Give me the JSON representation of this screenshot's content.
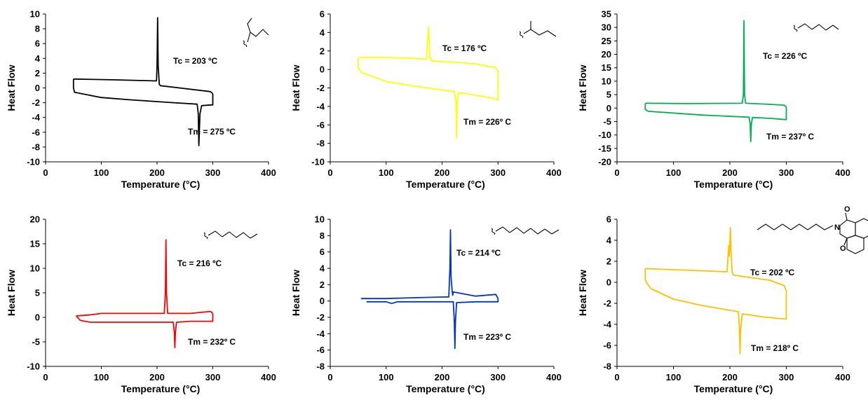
{
  "chart_data": [
    {
      "type": "line",
      "xlabel": "Temperature (°C)",
      "ylabel": "Heat Flow",
      "xlim": [
        0,
        400
      ],
      "ylim": [
        -10,
        10
      ],
      "xticks": [
        0,
        100,
        200,
        300,
        400
      ],
      "yticks": [
        10,
        8,
        6,
        4,
        2,
        0,
        -2,
        -4,
        -6,
        -8,
        -10
      ],
      "color": "#000000",
      "structure": "2-ethylbutyl",
      "series": [
        {
          "x": [
            50,
            120,
            199,
            200,
            201,
            202,
            204,
            206,
            240,
            296,
            300
          ],
          "y": [
            1.2,
            1.1,
            0.95,
            3,
            9.5,
            3,
            0.5,
            0.3,
            0.0,
            -0.5,
            -0.8
          ]
        },
        {
          "x": [
            300,
            300,
            296,
            280,
            277,
            275,
            274,
            272,
            230,
            150,
            100,
            52,
            50,
            50
          ],
          "y": [
            -0.8,
            -2.3,
            -2.3,
            -2.4,
            -3.5,
            -7.8,
            -3.5,
            -2.2,
            -2.0,
            -1.6,
            -1.3,
            -0.6,
            0.0,
            1.2
          ]
        }
      ],
      "annotations": [
        "Tc =  203 ºC",
        "Tm =  275 ºC"
      ]
    },
    {
      "type": "line",
      "xlabel": "Temperature (°C)",
      "ylabel": "Heat Flow",
      "xlim": [
        0,
        400
      ],
      "ylim": [
        -10,
        6
      ],
      "xticks": [
        0,
        100,
        200,
        300,
        400
      ],
      "yticks": [
        6,
        4,
        2,
        0,
        -2,
        -4,
        -6,
        -8,
        -10
      ],
      "color": "#ffff00",
      "structure": "2-methylpentyl",
      "series": [
        {
          "x": [
            52,
            100,
            150,
            172,
            176,
            178,
            182,
            220,
            260,
            296,
            300
          ],
          "y": [
            1.3,
            1.3,
            1.2,
            1.1,
            4.6,
            1.3,
            0.9,
            0.8,
            0.6,
            0.2,
            -0.2
          ]
        },
        {
          "x": [
            300,
            300,
            290,
            240,
            230,
            227,
            226,
            225,
            222,
            150,
            100,
            55,
            50,
            50
          ],
          "y": [
            -0.2,
            -3.3,
            -3.1,
            -2.6,
            -2.5,
            -3.5,
            -7.4,
            -3.5,
            -2.4,
            -1.8,
            -1.3,
            -0.3,
            0.2,
            1.3
          ]
        }
      ],
      "annotations": [
        "Tc =  176 ºC",
        "Tm =  226º C"
      ]
    },
    {
      "type": "line",
      "xlabel": "Temperature (°C)",
      "ylabel": "Heat Flow",
      "xlim": [
        0,
        400
      ],
      "ylim": [
        -20,
        35
      ],
      "xticks": [
        0,
        100,
        200,
        300,
        400
      ],
      "yticks": [
        35,
        30,
        25,
        20,
        15,
        10,
        5,
        0,
        -5,
        -10,
        -15,
        -20
      ],
      "color": "#00b050",
      "structure": "n-hexyl",
      "series": [
        {
          "x": [
            50,
            120,
            222,
            224,
            225,
            226,
            228,
            260,
            296,
            300
          ],
          "y": [
            1.8,
            1.7,
            1.8,
            5,
            32.5,
            5,
            1.8,
            1.5,
            1.1,
            0.5
          ]
        },
        {
          "x": [
            300,
            300,
            270,
            240,
            238,
            237,
            236,
            234,
            150,
            55,
            50,
            50
          ],
          "y": [
            0.5,
            -4.3,
            -3.8,
            -3.5,
            -6,
            -12.5,
            -6,
            -3.4,
            -2.6,
            -1.2,
            -0.5,
            1.8
          ]
        }
      ],
      "annotations": [
        "Tc =  226 ºC",
        "Tm =  237º C"
      ]
    },
    {
      "type": "line",
      "xlabel": "Temperature (°C)",
      "ylabel": "Heat Flow",
      "xlim": [
        0,
        400
      ],
      "ylim": [
        -10,
        20
      ],
      "xticks": [
        0,
        100,
        200,
        300,
        400
      ],
      "yticks": [
        20,
        15,
        10,
        5,
        0,
        -5,
        -10
      ],
      "color": "#ff0000",
      "structure": "n-heptyl",
      "series": [
        {
          "x": [
            55,
            80,
            100,
            150,
            213,
            215,
            216,
            217,
            219,
            260,
            296,
            300
          ],
          "y": [
            0.3,
            0.5,
            0.8,
            0.8,
            0.8,
            5,
            15.8,
            5,
            0.8,
            0.8,
            1.2,
            0.8
          ]
        },
        {
          "x": [
            300,
            300,
            260,
            235,
            233,
            232,
            231,
            229,
            150,
            80,
            62,
            55
          ],
          "y": [
            0.8,
            -0.8,
            -0.8,
            -1.0,
            -3,
            -6.2,
            -3,
            -1.0,
            -1.0,
            -1.0,
            -0.6,
            0.3
          ]
        }
      ],
      "annotations": [
        "Tc =  216 ºC",
        "Tm =  232º C"
      ]
    },
    {
      "type": "line",
      "xlabel": "Temperature (°C)",
      "ylabel": "Heat Flow",
      "xlim": [
        0,
        400
      ],
      "ylim": [
        -8,
        10
      ],
      "xticks": [
        0,
        100,
        200,
        300,
        400
      ],
      "yticks": [
        10,
        8,
        6,
        4,
        2,
        0,
        -2,
        -4,
        -6,
        -8
      ],
      "color": "#0033cc",
      "structure": "n-nonyl",
      "series": [
        {
          "x": [
            55,
            100,
            150,
            212,
            214,
            215,
            216,
            218,
            219,
            220,
            260,
            296,
            300
          ],
          "y": [
            0.3,
            0.3,
            0.4,
            0.5,
            4,
            8.7,
            3,
            1.2,
            0.7,
            1.1,
            0.6,
            0.8,
            0.3
          ]
        },
        {
          "x": [
            300,
            300,
            260,
            226,
            224,
            223,
            222,
            220,
            150,
            120,
            110,
            100,
            65
          ],
          "y": [
            0.3,
            -0.1,
            -0.1,
            -0.2,
            -2.5,
            -5.8,
            -2.5,
            -0.1,
            -0.1,
            -0.1,
            -0.3,
            -0.1,
            -0.1
          ]
        }
      ],
      "annotations": [
        "Tc =  214 ºC",
        "Tm =  223º C"
      ]
    },
    {
      "type": "line",
      "xlabel": "Temperature (°C)",
      "ylabel": "Heat Flow",
      "xlim": [
        0,
        400
      ],
      "ylim": [
        -8,
        6
      ],
      "xticks": [
        0,
        100,
        200,
        300,
        400
      ],
      "yticks": [
        6,
        4,
        2,
        0,
        -2,
        -4,
        -6,
        -8
      ],
      "color": "#ffc000",
      "structure": "n-octyl naphthalimide",
      "structure_atoms": [
        "N",
        "O",
        "O"
      ],
      "series": [
        {
          "x": [
            50,
            100,
            150,
            195,
            198,
            199,
            201,
            202,
            204,
            206,
            230,
            270,
            296,
            300
          ],
          "y": [
            1.3,
            1.2,
            1.1,
            1.0,
            3.5,
            2.5,
            5.2,
            3.0,
            1.0,
            0.7,
            0.5,
            0.2,
            -0.3,
            -0.8
          ]
        },
        {
          "x": [
            300,
            300,
            260,
            222,
            219,
            218,
            217,
            215,
            150,
            100,
            60,
            52,
            50,
            50
          ],
          "y": [
            -0.8,
            -3.5,
            -3.3,
            -3.0,
            -4.5,
            -6.8,
            -4.5,
            -2.8,
            -2.2,
            -1.6,
            -0.6,
            0.0,
            0.3,
            1.3
          ]
        }
      ],
      "annotations": [
        "Tc =  202 ºC",
        "Tm =  218º C"
      ]
    }
  ]
}
